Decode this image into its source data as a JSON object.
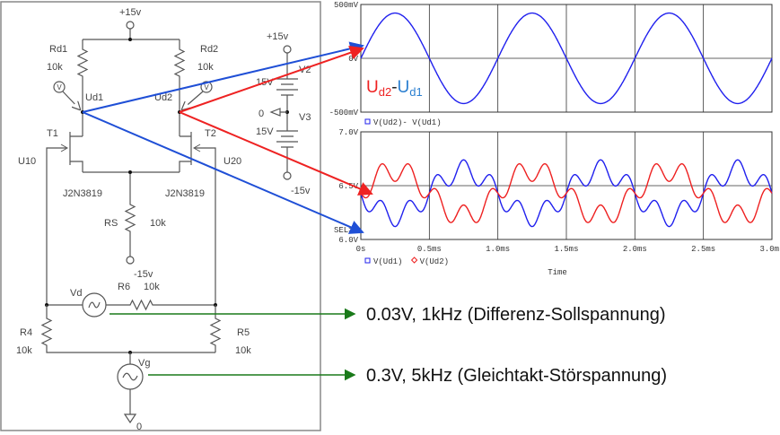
{
  "schematic": {
    "supply_top": "+15v",
    "rd1": {
      "name": "Rd1",
      "value": "10k"
    },
    "rd2": {
      "name": "Rd2",
      "value": "10k"
    },
    "node_ud1": "Ud1",
    "node_ud2": "Ud2",
    "probe_glyph": "V",
    "t1": {
      "name": "T1",
      "model": "J2N3819"
    },
    "t2": {
      "name": "T2",
      "model": "J2N3819"
    },
    "u10": "U10",
    "u20": "U20",
    "rs": {
      "name": "RS",
      "value": "10k"
    },
    "rs_supply": "-15v",
    "v2": {
      "name": "V2",
      "value": "15V",
      "supply": "+15v"
    },
    "v3": {
      "name": "V3",
      "value": "15V",
      "supply": "-15v"
    },
    "ground_mid": "0",
    "vd": "Vd",
    "r6": {
      "name": "R6",
      "value": "10k"
    },
    "r4": {
      "name": "R4",
      "value": "10k"
    },
    "r5": {
      "name": "R5",
      "value": "10k"
    },
    "vg": "Vg",
    "ground_bottom": "0"
  },
  "annotations": {
    "diff_label_a": "U",
    "diff_label_a_sub": "d2",
    "diff_label_sep": "-",
    "diff_label_b": "U",
    "diff_label_b_sub": "d1",
    "vd_note": "0.03V, 1kHz (Differenz-Sollspannung)",
    "vg_note": "0.3V, 5kHz (Gleichtakt-Störspannung)",
    "colors": {
      "ud1": "#1f4fd6",
      "ud2": "#ee2222",
      "note_arrow": "#1a7a1a"
    }
  },
  "chart_data": [
    {
      "type": "line",
      "xlim": [
        0,
        3.0
      ],
      "ylim": [
        -0.5,
        0.5
      ],
      "ytick_labels": [
        "500mV",
        "0V",
        "-500mV"
      ],
      "grid": true,
      "series": [
        {
          "name": "V(Ud2)- V(Ud1)",
          "color": "#2020ee",
          "marker": "square",
          "components": [
            {
              "amplitude_V": 0.42,
              "frequency_kHz": 1,
              "phase": "sin"
            }
          ],
          "offset_V": 0
        }
      ]
    },
    {
      "type": "line",
      "xlim": [
        0,
        3.0
      ],
      "ylim": [
        6.0,
        7.0
      ],
      "xlabel": "Time",
      "xtick_labels": [
        "0s",
        "0.5ms",
        "1.0ms",
        "1.5ms",
        "2.0ms",
        "2.5ms",
        "3.0ms"
      ],
      "ytick_labels": [
        "7.0V",
        "6.5V",
        "6.0V"
      ],
      "sel_marker": "SEL>>",
      "grid": true,
      "series": [
        {
          "name": "V(Ud1)",
          "color": "#2020ee",
          "marker": "square",
          "offset_V": 6.43,
          "components": [
            {
              "amplitude_V": -0.21,
              "frequency_kHz": 1
            },
            {
              "amplitude_V": -0.1,
              "frequency_kHz": 5
            }
          ]
        },
        {
          "name": "V(Ud2)",
          "color": "#ee2020",
          "marker": "diamond",
          "offset_V": 6.43,
          "components": [
            {
              "amplitude_V": 0.21,
              "frequency_kHz": 1
            },
            {
              "amplitude_V": -0.1,
              "frequency_kHz": 5
            }
          ]
        }
      ]
    }
  ]
}
